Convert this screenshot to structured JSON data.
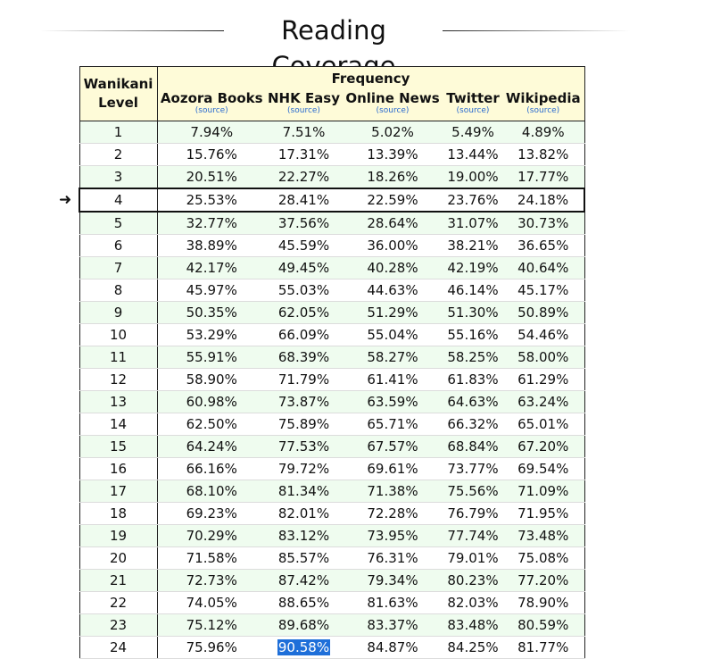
{
  "title": "Reading Coverage",
  "header": {
    "level_label_line1": "Wanikani",
    "level_label_line2": "Level",
    "frequency_label": "Frequency",
    "source_link_label": "(source)",
    "sources": [
      "Aozora Books",
      "NHK Easy",
      "Online News",
      "Twitter",
      "Wikipedia"
    ]
  },
  "current_level": 4,
  "arrow_icon": "right-arrow-icon",
  "colors": {
    "header_bg": "#fefbd8",
    "alt_row_bg": "#effcef",
    "link": "#2a6bd0",
    "selection": "#1e6fd9"
  },
  "selected_cell": {
    "level": 24,
    "source": "NHK Easy"
  },
  "rows": [
    {
      "level": "1",
      "values": [
        "7.94%",
        "7.51%",
        "5.02%",
        "5.49%",
        "4.89%"
      ]
    },
    {
      "level": "2",
      "values": [
        "15.76%",
        "17.31%",
        "13.39%",
        "13.44%",
        "13.82%"
      ]
    },
    {
      "level": "3",
      "values": [
        "20.51%",
        "22.27%",
        "18.26%",
        "19.00%",
        "17.77%"
      ]
    },
    {
      "level": "4",
      "values": [
        "25.53%",
        "28.41%",
        "22.59%",
        "23.76%",
        "24.18%"
      ]
    },
    {
      "level": "5",
      "values": [
        "32.77%",
        "37.56%",
        "28.64%",
        "31.07%",
        "30.73%"
      ]
    },
    {
      "level": "6",
      "values": [
        "38.89%",
        "45.59%",
        "36.00%",
        "38.21%",
        "36.65%"
      ]
    },
    {
      "level": "7",
      "values": [
        "42.17%",
        "49.45%",
        "40.28%",
        "42.19%",
        "40.64%"
      ]
    },
    {
      "level": "8",
      "values": [
        "45.97%",
        "55.03%",
        "44.63%",
        "46.14%",
        "45.17%"
      ]
    },
    {
      "level": "9",
      "values": [
        "50.35%",
        "62.05%",
        "51.29%",
        "51.30%",
        "50.89%"
      ]
    },
    {
      "level": "10",
      "values": [
        "53.29%",
        "66.09%",
        "55.04%",
        "55.16%",
        "54.46%"
      ]
    },
    {
      "level": "11",
      "values": [
        "55.91%",
        "68.39%",
        "58.27%",
        "58.25%",
        "58.00%"
      ]
    },
    {
      "level": "12",
      "values": [
        "58.90%",
        "71.79%",
        "61.41%",
        "61.83%",
        "61.29%"
      ]
    },
    {
      "level": "13",
      "values": [
        "60.98%",
        "73.87%",
        "63.59%",
        "64.63%",
        "63.24%"
      ]
    },
    {
      "level": "14",
      "values": [
        "62.50%",
        "75.89%",
        "65.71%",
        "66.32%",
        "65.01%"
      ]
    },
    {
      "level": "15",
      "values": [
        "64.24%",
        "77.53%",
        "67.57%",
        "68.84%",
        "67.20%"
      ]
    },
    {
      "level": "16",
      "values": [
        "66.16%",
        "79.72%",
        "69.61%",
        "73.77%",
        "69.54%"
      ]
    },
    {
      "level": "17",
      "values": [
        "68.10%",
        "81.34%",
        "71.38%",
        "75.56%",
        "71.09%"
      ]
    },
    {
      "level": "18",
      "values": [
        "69.23%",
        "82.01%",
        "72.28%",
        "76.79%",
        "71.95%"
      ]
    },
    {
      "level": "19",
      "values": [
        "70.29%",
        "83.12%",
        "73.95%",
        "77.74%",
        "73.48%"
      ]
    },
    {
      "level": "20",
      "values": [
        "71.58%",
        "85.57%",
        "76.31%",
        "79.01%",
        "75.08%"
      ]
    },
    {
      "level": "21",
      "values": [
        "72.73%",
        "87.42%",
        "79.34%",
        "80.23%",
        "77.20%"
      ]
    },
    {
      "level": "22",
      "values": [
        "74.05%",
        "88.65%",
        "81.63%",
        "82.03%",
        "78.90%"
      ]
    },
    {
      "level": "23",
      "values": [
        "75.12%",
        "89.68%",
        "83.37%",
        "83.48%",
        "80.59%"
      ]
    },
    {
      "level": "24",
      "values": [
        "75.96%",
        "90.58%",
        "84.87%",
        "84.25%",
        "81.77%"
      ]
    }
  ]
}
